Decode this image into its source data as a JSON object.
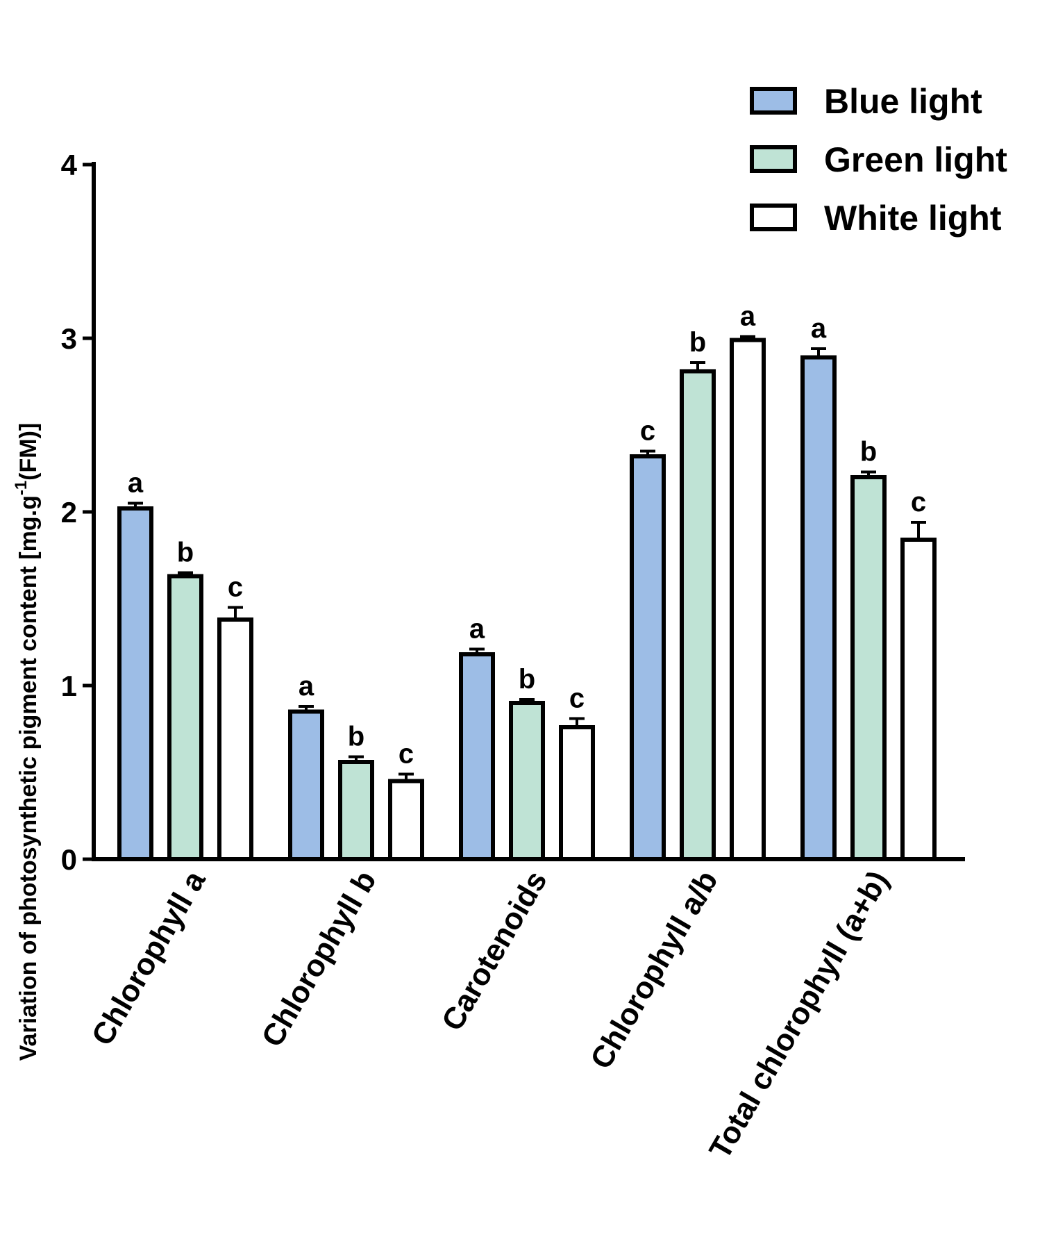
{
  "chart_data": {
    "type": "bar",
    "title": "",
    "xlabel": "",
    "ylabel": "Variation of photosynthetic pigment content [mg.g",
    "ylabel_superscript": "-1",
    "ylabel_suffix": "(FM)]",
    "ylim": [
      0,
      4
    ],
    "yticks": [
      "0",
      "1",
      "2",
      "3",
      "4"
    ],
    "categories": [
      "Chlorophyll a",
      "Chlorophyll b",
      "Carotenoids",
      "Chlorophyll a/b",
      "Total chlorophyll (a+b)"
    ],
    "series": [
      {
        "name": "Blue light",
        "color": "#9dbde6",
        "values": [
          2.02,
          0.85,
          1.18,
          2.32,
          2.89
        ],
        "errors": [
          0.03,
          0.03,
          0.03,
          0.03,
          0.05
        ],
        "letters": [
          "a",
          "a",
          "a",
          "c",
          "a"
        ]
      },
      {
        "name": "Green light",
        "color": "#bfe3d5",
        "values": [
          1.63,
          0.56,
          0.9,
          2.81,
          2.2
        ],
        "errors": [
          0.02,
          0.03,
          0.02,
          0.05,
          0.03
        ],
        "letters": [
          "b",
          "b",
          "b",
          "b",
          "b"
        ]
      },
      {
        "name": "White light",
        "color": "#ffffff",
        "values": [
          1.38,
          0.45,
          0.76,
          2.99,
          1.84
        ],
        "errors": [
          0.07,
          0.04,
          0.05,
          0.02,
          0.1
        ],
        "letters": [
          "c",
          "c",
          "c",
          "a",
          "c"
        ]
      }
    ],
    "legend_position": "top-right",
    "grid": false
  }
}
